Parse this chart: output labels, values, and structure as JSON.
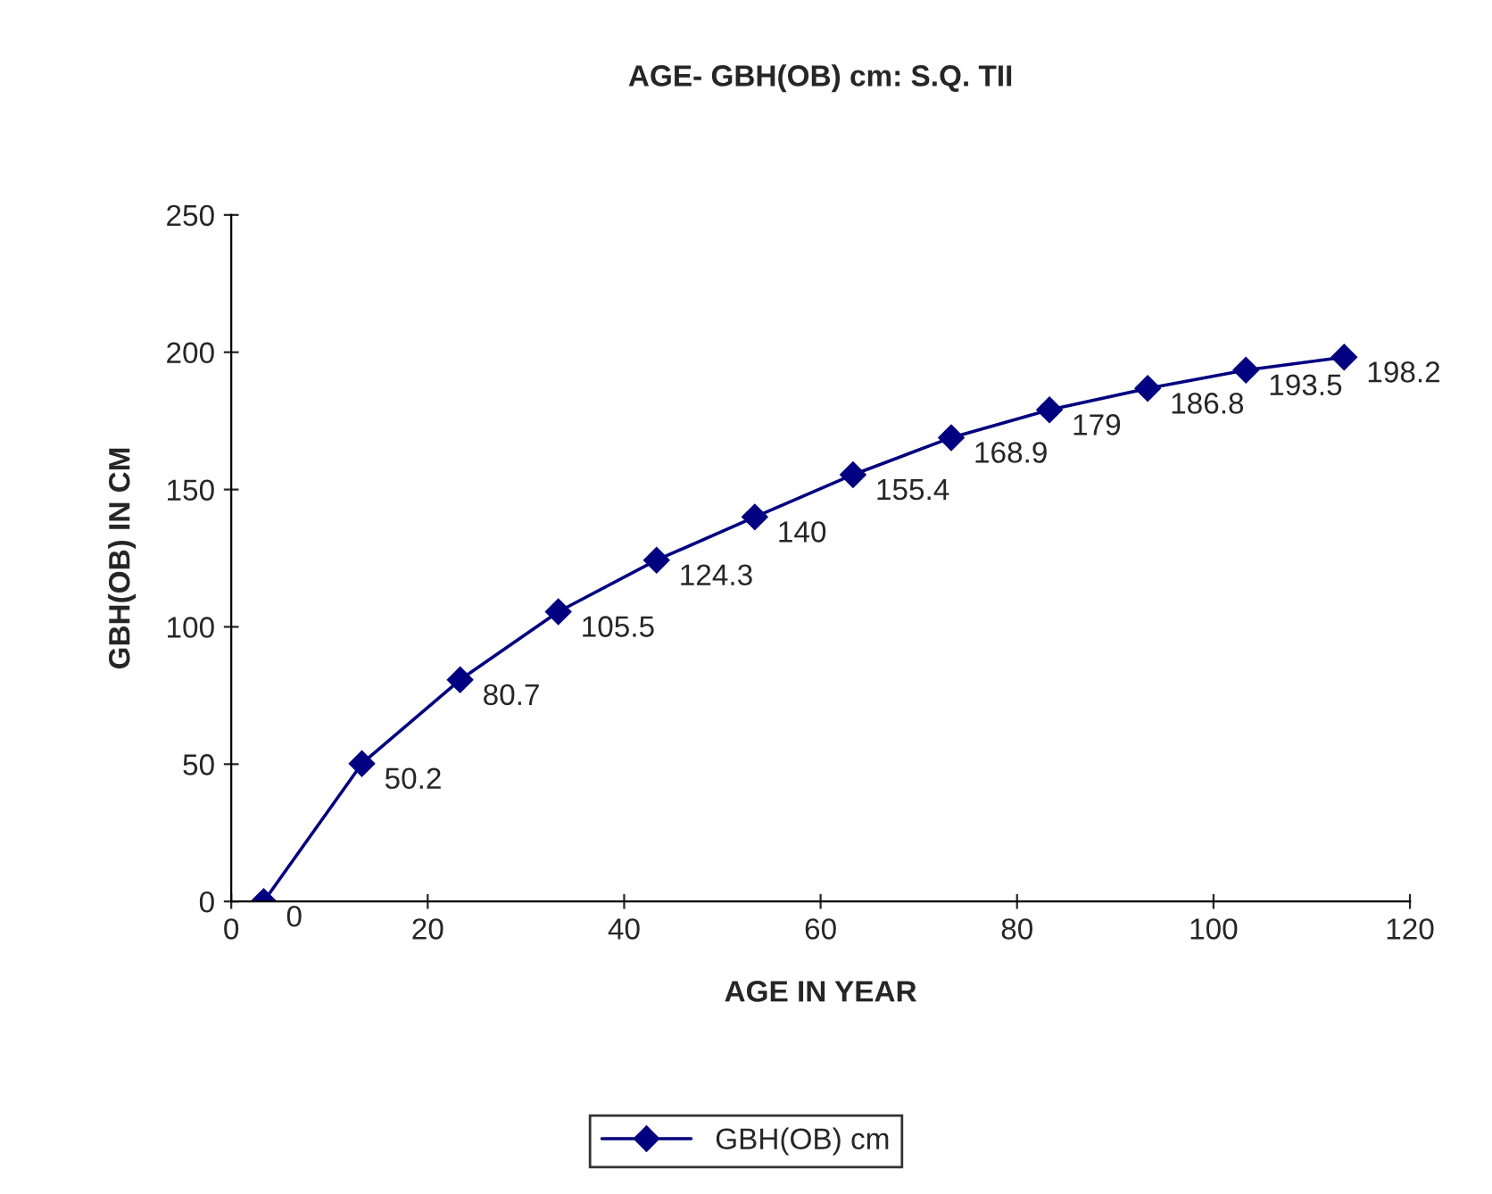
{
  "chart_data": {
    "type": "line",
    "title": "AGE- GBH(OB) cm: S.Q. TII",
    "xlabel": "AGE IN YEAR",
    "ylabel": "GBH(OB) IN CM",
    "x": [
      3.3,
      13.3,
      23.3,
      33.3,
      43.3,
      53.3,
      63.3,
      73.3,
      83.3,
      93.3,
      103.3,
      113.3
    ],
    "series": [
      {
        "name": "GBH(OB) cm",
        "color": "#000080",
        "values": [
          0,
          50.2,
          80.7,
          105.5,
          124.3,
          140,
          155.4,
          168.9,
          179,
          186.8,
          193.5,
          198.2
        ]
      }
    ],
    "xlim": [
      0,
      120
    ],
    "xticks": [
      0,
      20,
      40,
      60,
      80,
      100,
      120
    ],
    "ylim": [
      0,
      250
    ],
    "yticks": [
      0,
      50,
      100,
      150,
      200,
      250
    ],
    "data_labels": true,
    "marker": "diamond",
    "line_style": "solid",
    "legend": "bottom",
    "grid": false
  }
}
